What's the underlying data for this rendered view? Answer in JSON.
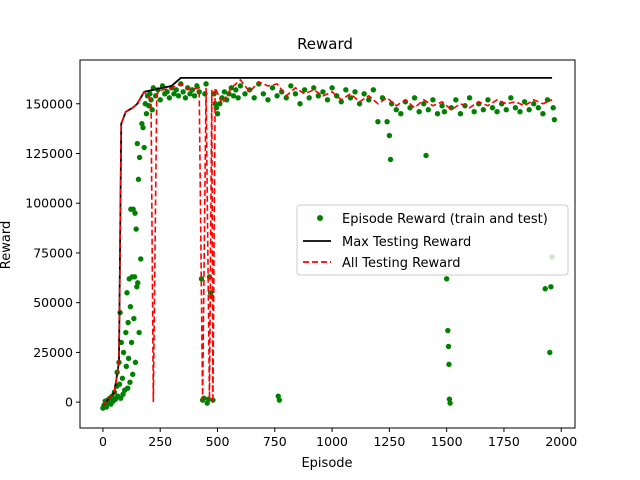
{
  "chart_data": {
    "type": "line",
    "title": "Reward",
    "xlabel": "Episode",
    "ylabel": "Reward",
    "xlim": [
      -100,
      2060
    ],
    "ylim": [
      -13000,
      172000
    ],
    "xticks": [
      0,
      250,
      500,
      750,
      1000,
      1250,
      1500,
      1750,
      2000
    ],
    "yticks": [
      0,
      25000,
      50000,
      75000,
      100000,
      125000,
      150000
    ],
    "ytick_labels": [
      "0",
      "25000",
      "50000",
      "75000",
      "100000",
      "125000",
      "150000"
    ],
    "xtick_labels": [
      "0",
      "250",
      "500",
      "750",
      "1000",
      "1250",
      "1500",
      "1750",
      "2000"
    ],
    "grid": false,
    "legend_position": "center-right",
    "colors": {
      "episode": "#008000",
      "max": "#000000",
      "all": "#ff0000"
    },
    "series": [
      {
        "name": "Episode Reward (train and test)",
        "style": "scatter",
        "points": [
          [
            0,
            -3000
          ],
          [
            5,
            -1500
          ],
          [
            10,
            500
          ],
          [
            15,
            -2500
          ],
          [
            20,
            1000
          ],
          [
            25,
            -500
          ],
          [
            30,
            2000
          ],
          [
            35,
            -1000
          ],
          [
            40,
            3000
          ],
          [
            45,
            500
          ],
          [
            50,
            5000
          ],
          [
            55,
            1500
          ],
          [
            60,
            8000
          ],
          [
            62,
            15000
          ],
          [
            65,
            3000
          ],
          [
            70,
            20000
          ],
          [
            72,
            9000
          ],
          [
            75,
            45000
          ],
          [
            78,
            2000
          ],
          [
            80,
            30000
          ],
          [
            85,
            12000
          ],
          [
            88,
            4000
          ],
          [
            90,
            25000
          ],
          [
            95,
            6000
          ],
          [
            100,
            35000
          ],
          [
            102,
            18000
          ],
          [
            105,
            55000
          ],
          [
            108,
            7000
          ],
          [
            110,
            40000
          ],
          [
            112,
            22000
          ],
          [
            115,
            62000
          ],
          [
            118,
            10000
          ],
          [
            120,
            48000
          ],
          [
            122,
            97000
          ],
          [
            125,
            30000
          ],
          [
            128,
            63000
          ],
          [
            130,
            14000
          ],
          [
            132,
            97000
          ],
          [
            135,
            42000
          ],
          [
            138,
            63000
          ],
          [
            140,
            95000
          ],
          [
            142,
            20000
          ],
          [
            145,
            87000
          ],
          [
            148,
            58000
          ],
          [
            150,
            130000
          ],
          [
            152,
            60000
          ],
          [
            155,
            112000
          ],
          [
            158,
            35000
          ],
          [
            160,
            123000
          ],
          [
            165,
            72000
          ],
          [
            170,
            140000
          ],
          [
            175,
            138000
          ],
          [
            180,
            128000
          ],
          [
            185,
            150000
          ],
          [
            190,
            145000
          ],
          [
            195,
            154000
          ],
          [
            200,
            149000
          ],
          [
            205,
            155000
          ],
          [
            210,
            152000
          ],
          [
            215,
            147000
          ],
          [
            220,
            158000
          ],
          [
            230,
            154000
          ],
          [
            240,
            157000
          ],
          [
            250,
            152000
          ],
          [
            260,
            159000
          ],
          [
            270,
            155000
          ],
          [
            280,
            156000
          ],
          [
            290,
            153000
          ],
          [
            300,
            158000
          ],
          [
            310,
            155000
          ],
          [
            320,
            157000
          ],
          [
            330,
            154000
          ],
          [
            340,
            160000
          ],
          [
            350,
            156000
          ],
          [
            360,
            153000
          ],
          [
            370,
            158000
          ],
          [
            380,
            155000
          ],
          [
            390,
            157000
          ],
          [
            400,
            154000
          ],
          [
            410,
            159000
          ],
          [
            420,
            156000
          ],
          [
            430,
            62000
          ],
          [
            435,
            1000
          ],
          [
            440,
            2000
          ],
          [
            445,
            155000
          ],
          [
            450,
            160000
          ],
          [
            455,
            -500
          ],
          [
            460,
            1500
          ],
          [
            465,
            63000
          ],
          [
            470,
            55000
          ],
          [
            475,
            53000
          ],
          [
            480,
            1000
          ],
          [
            485,
            155000
          ],
          [
            490,
            150000
          ],
          [
            495,
            148000
          ],
          [
            500,
            145000
          ],
          [
            510,
            150000
          ],
          [
            520,
            153000
          ],
          [
            530,
            156000
          ],
          [
            540,
            152000
          ],
          [
            550,
            155000
          ],
          [
            560,
            158000
          ],
          [
            570,
            154000
          ],
          [
            580,
            157000
          ],
          [
            590,
            153000
          ],
          [
            600,
            159000
          ],
          [
            620,
            155000
          ],
          [
            640,
            157000
          ],
          [
            660,
            153000
          ],
          [
            680,
            160000
          ],
          [
            700,
            155000
          ],
          [
            720,
            152000
          ],
          [
            740,
            158000
          ],
          [
            760,
            154000
          ],
          [
            765,
            3000
          ],
          [
            770,
            1000
          ],
          [
            780,
            156000
          ],
          [
            800,
            153000
          ],
          [
            820,
            159000
          ],
          [
            840,
            155000
          ],
          [
            860,
            150000
          ],
          [
            880,
            157000
          ],
          [
            900,
            153000
          ],
          [
            920,
            158000
          ],
          [
            940,
            154000
          ],
          [
            960,
            156000
          ],
          [
            980,
            152000
          ],
          [
            1000,
            158000
          ],
          [
            1020,
            154000
          ],
          [
            1040,
            151000
          ],
          [
            1060,
            157000
          ],
          [
            1080,
            153000
          ],
          [
            1100,
            156000
          ],
          [
            1120,
            150000
          ],
          [
            1140,
            155000
          ],
          [
            1160,
            152000
          ],
          [
            1180,
            157000
          ],
          [
            1200,
            141000
          ],
          [
            1220,
            153000
          ],
          [
            1240,
            141000
          ],
          [
            1250,
            134000
          ],
          [
            1255,
            122000
          ],
          [
            1260,
            150000
          ],
          [
            1280,
            147000
          ],
          [
            1300,
            145000
          ],
          [
            1320,
            151000
          ],
          [
            1340,
            148000
          ],
          [
            1360,
            153000
          ],
          [
            1380,
            146000
          ],
          [
            1400,
            150000
          ],
          [
            1410,
            124000
          ],
          [
            1420,
            147000
          ],
          [
            1440,
            152000
          ],
          [
            1460,
            145000
          ],
          [
            1480,
            149000
          ],
          [
            1490,
            146000
          ],
          [
            1500,
            62000
          ],
          [
            1505,
            36000
          ],
          [
            1508,
            28000
          ],
          [
            1510,
            19000
          ],
          [
            1512,
            1500
          ],
          [
            1515,
            -500
          ],
          [
            1520,
            148000
          ],
          [
            1540,
            152000
          ],
          [
            1560,
            145000
          ],
          [
            1580,
            149000
          ],
          [
            1600,
            153000
          ],
          [
            1620,
            146000
          ],
          [
            1640,
            150000
          ],
          [
            1660,
            147000
          ],
          [
            1680,
            152000
          ],
          [
            1700,
            148000
          ],
          [
            1720,
            146000
          ],
          [
            1740,
            150000
          ],
          [
            1760,
            147000
          ],
          [
            1780,
            153000
          ],
          [
            1800,
            148000
          ],
          [
            1820,
            146000
          ],
          [
            1840,
            151000
          ],
          [
            1860,
            147000
          ],
          [
            1880,
            150000
          ],
          [
            1900,
            148000
          ],
          [
            1920,
            145000
          ],
          [
            1930,
            57000
          ],
          [
            1940,
            152000
          ],
          [
            1950,
            25000
          ],
          [
            1955,
            58000
          ],
          [
            1960,
            73000
          ],
          [
            1965,
            148000
          ],
          [
            1970,
            142000
          ]
        ]
      },
      {
        "name": "Max Testing Reward",
        "style": "solid",
        "points": [
          [
            0,
            -2000
          ],
          [
            20,
            1000
          ],
          [
            50,
            5000
          ],
          [
            70,
            20000
          ],
          [
            80,
            140000
          ],
          [
            100,
            146000
          ],
          [
            130,
            148000
          ],
          [
            150,
            150000
          ],
          [
            180,
            156000
          ],
          [
            220,
            157000
          ],
          [
            300,
            159000
          ],
          [
            340,
            163000
          ],
          [
            1960,
            163000
          ]
        ]
      },
      {
        "name": "All Testing Reward",
        "style": "dashed",
        "points": [
          [
            0,
            -2000
          ],
          [
            20,
            1000
          ],
          [
            50,
            5000
          ],
          [
            70,
            20000
          ],
          [
            80,
            140000
          ],
          [
            100,
            146000
          ],
          [
            130,
            148000
          ],
          [
            150,
            150000
          ],
          [
            180,
            156000
          ],
          [
            210,
            152000
          ],
          [
            220,
            0
          ],
          [
            235,
            155000
          ],
          [
            260,
            157000
          ],
          [
            300,
            158000
          ],
          [
            340,
            160000
          ],
          [
            380,
            157000
          ],
          [
            420,
            158000
          ],
          [
            435,
            1000
          ],
          [
            450,
            158000
          ],
          [
            465,
            1000
          ],
          [
            475,
            157000
          ],
          [
            480,
            0
          ],
          [
            490,
            158000
          ],
          [
            520,
            150000
          ],
          [
            560,
            158000
          ],
          [
            600,
            162000
          ],
          [
            640,
            156000
          ],
          [
            680,
            161000
          ],
          [
            720,
            159000
          ],
          [
            760,
            160000
          ],
          [
            800,
            154000
          ],
          [
            840,
            158000
          ],
          [
            880,
            155000
          ],
          [
            920,
            157000
          ],
          [
            960,
            154000
          ],
          [
            1000,
            156000
          ],
          [
            1040,
            152000
          ],
          [
            1080,
            155000
          ],
          [
            1120,
            151000
          ],
          [
            1160,
            154000
          ],
          [
            1200,
            150000
          ],
          [
            1240,
            153000
          ],
          [
            1280,
            149000
          ],
          [
            1320,
            152000
          ],
          [
            1360,
            148000
          ],
          [
            1400,
            152000
          ],
          [
            1440,
            149000
          ],
          [
            1480,
            151000
          ],
          [
            1520,
            147000
          ],
          [
            1560,
            150000
          ],
          [
            1600,
            148000
          ],
          [
            1640,
            151000
          ],
          [
            1680,
            149000
          ],
          [
            1720,
            152000
          ],
          [
            1760,
            150000
          ],
          [
            1800,
            151000
          ],
          [
            1840,
            149000
          ],
          [
            1880,
            152000
          ],
          [
            1920,
            150000
          ],
          [
            1960,
            152000
          ]
        ]
      }
    ]
  }
}
